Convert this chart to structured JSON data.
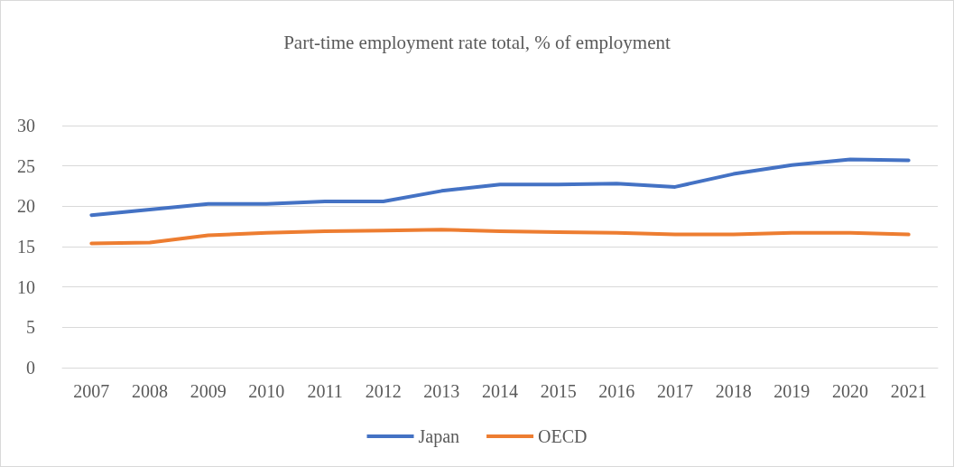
{
  "chart_data": {
    "type": "line",
    "title": "Part-time employment rate total, % of employment",
    "categories": [
      "2007",
      "2008",
      "2009",
      "2010",
      "2011",
      "2012",
      "2013",
      "2014",
      "2015",
      "2016",
      "2017",
      "2018",
      "2019",
      "2020",
      "2021"
    ],
    "series": [
      {
        "name": "Japan",
        "color": "#4472c4",
        "values": [
          18.9,
          19.6,
          20.3,
          20.3,
          20.6,
          20.6,
          21.9,
          22.7,
          22.7,
          22.8,
          22.4,
          24.0,
          25.1,
          25.8,
          25.7
        ]
      },
      {
        "name": "OECD",
        "color": "#ed7d31",
        "values": [
          15.4,
          15.5,
          16.4,
          16.7,
          16.9,
          17.0,
          17.1,
          16.9,
          16.8,
          16.7,
          16.5,
          16.5,
          16.7,
          16.7,
          16.5
        ]
      }
    ],
    "ylim": [
      0,
      30
    ],
    "yticks": [
      0,
      5,
      10,
      15,
      20,
      25,
      30
    ],
    "grid": "y",
    "legend": "bottom",
    "marker": "none",
    "line_style": "solid"
  }
}
